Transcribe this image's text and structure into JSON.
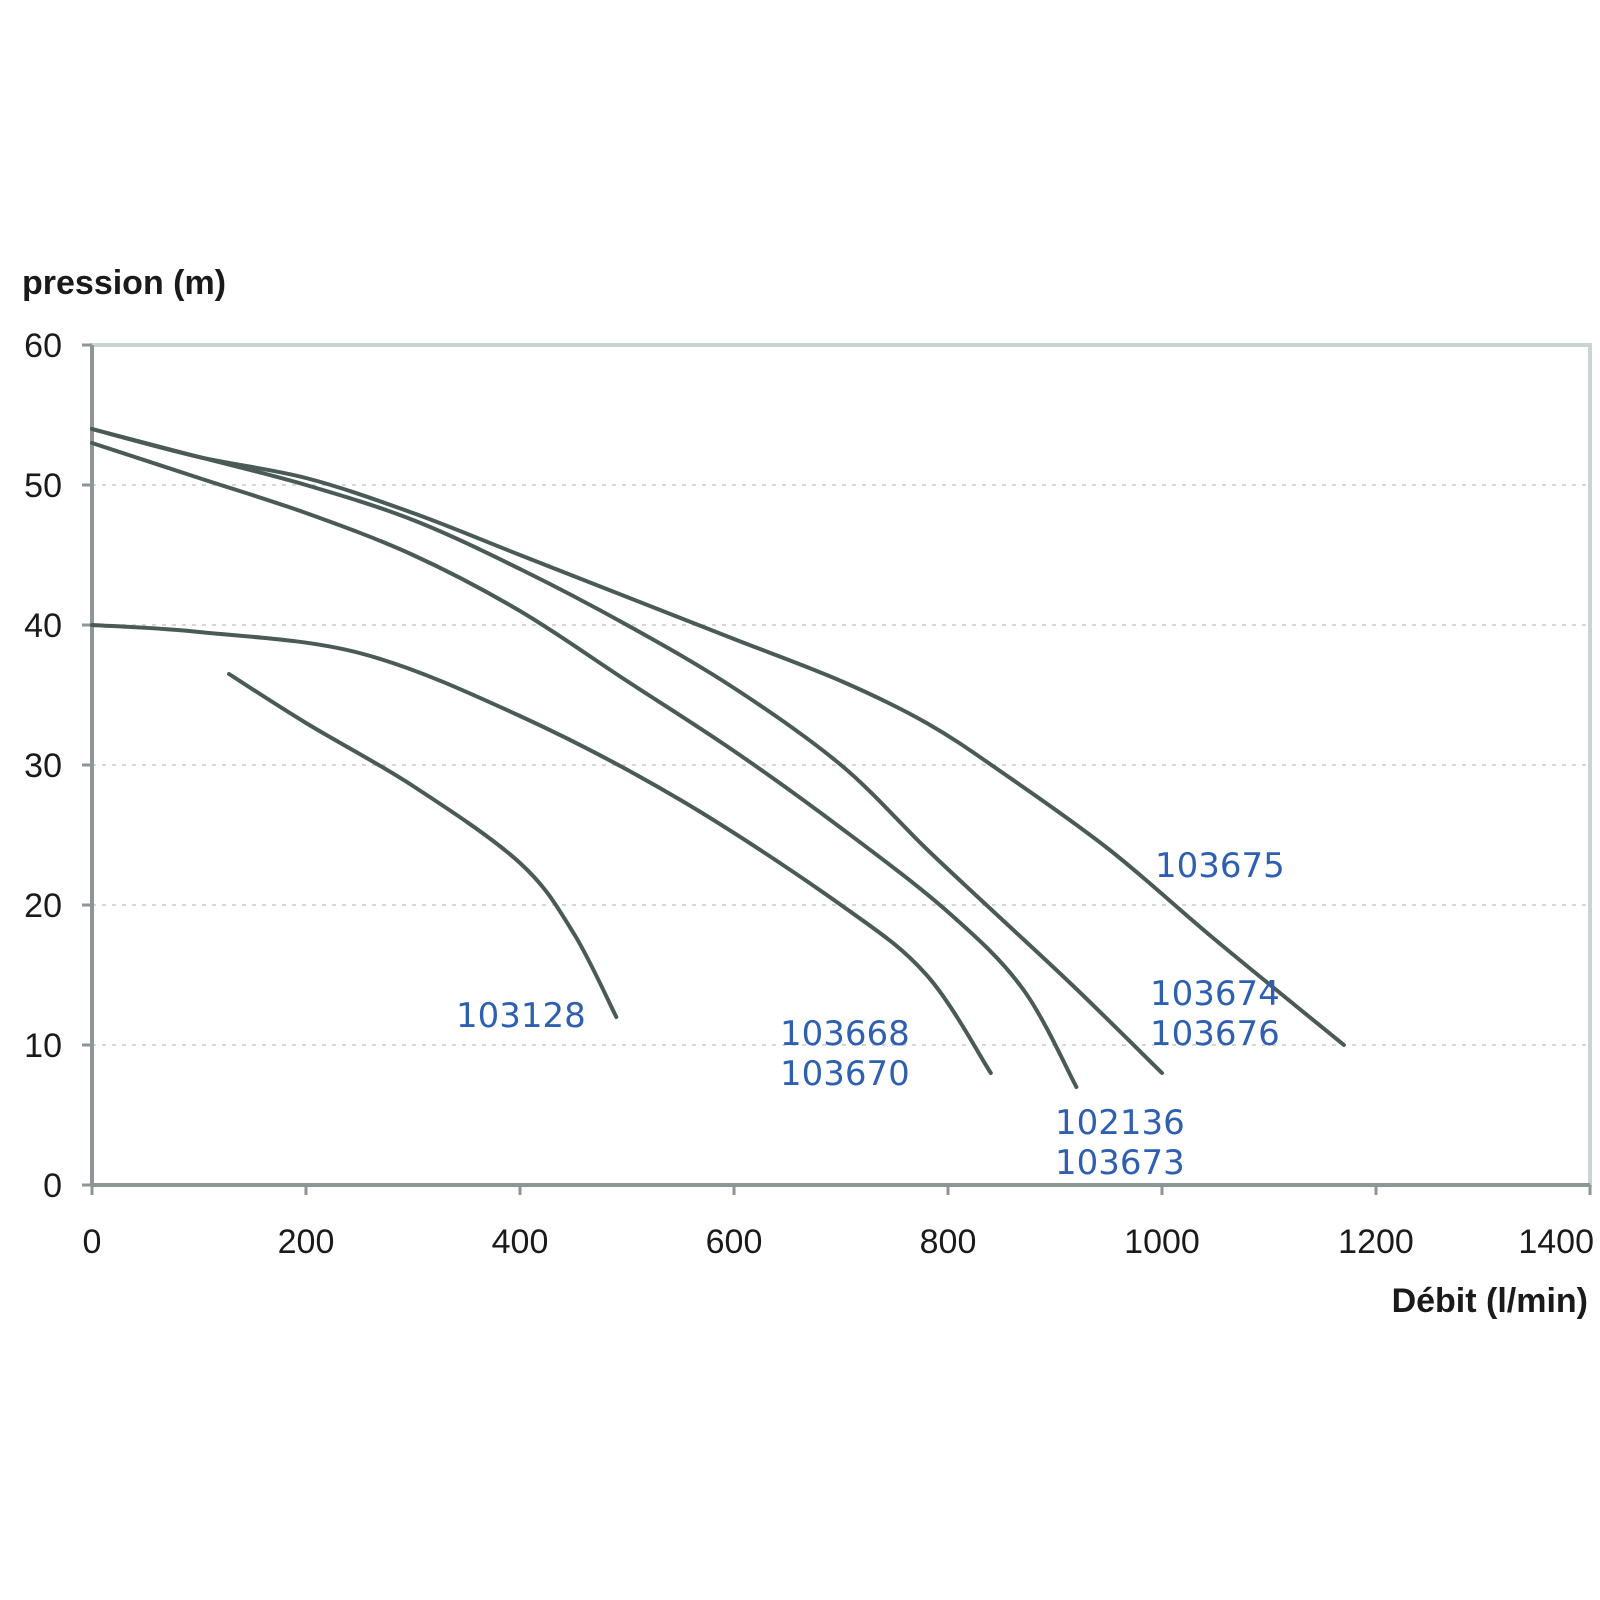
{
  "chart_data": {
    "type": "line",
    "title": "",
    "xlabel": "Débit (l/min)",
    "ylabel": "pression (m)",
    "xlim": [
      0,
      1400
    ],
    "ylim": [
      0,
      60
    ],
    "xticks": [
      0,
      200,
      400,
      600,
      800,
      1000,
      1200,
      1400
    ],
    "yticks": [
      0,
      10,
      20,
      30,
      40,
      50,
      60
    ],
    "grid": "horizontal dashed",
    "series": [
      {
        "labels": [
          "103128"
        ],
        "points": [
          [
            128,
            36.5
          ],
          [
            200,
            33
          ],
          [
            300,
            28.5
          ],
          [
            400,
            23
          ],
          [
            450,
            18
          ],
          [
            490,
            12
          ]
        ]
      },
      {
        "labels": [
          "103668",
          "103670"
        ],
        "points": [
          [
            0,
            40
          ],
          [
            100,
            39.5
          ],
          [
            250,
            38
          ],
          [
            400,
            33.5
          ],
          [
            550,
            27.5
          ],
          [
            700,
            20
          ],
          [
            780,
            15
          ],
          [
            840,
            8
          ]
        ]
      },
      {
        "labels": [
          "102136",
          "103673"
        ],
        "points": [
          [
            0,
            53
          ],
          [
            100,
            50.5
          ],
          [
            200,
            48
          ],
          [
            300,
            45
          ],
          [
            400,
            41
          ],
          [
            500,
            36
          ],
          [
            600,
            31
          ],
          [
            700,
            25.5
          ],
          [
            800,
            19.5
          ],
          [
            870,
            14
          ],
          [
            920,
            7
          ]
        ]
      },
      {
        "labels": [
          "103674",
          "103676"
        ],
        "points": [
          [
            0,
            54
          ],
          [
            100,
            52
          ],
          [
            200,
            50
          ],
          [
            300,
            47.5
          ],
          [
            400,
            44
          ],
          [
            500,
            40
          ],
          [
            600,
            35.5
          ],
          [
            700,
            30
          ],
          [
            780,
            24
          ],
          [
            850,
            19
          ],
          [
            920,
            14
          ],
          [
            1000,
            8
          ]
        ]
      },
      {
        "labels": [
          "103675"
        ],
        "points": [
          [
            0,
            54
          ],
          [
            100,
            52
          ],
          [
            200,
            50.5
          ],
          [
            300,
            48
          ],
          [
            400,
            45
          ],
          [
            500,
            42
          ],
          [
            600,
            39
          ],
          [
            700,
            36
          ],
          [
            780,
            33
          ],
          [
            850,
            29.5
          ],
          [
            950,
            24
          ],
          [
            1050,
            17.5
          ],
          [
            1170,
            10
          ]
        ]
      }
    ]
  }
}
